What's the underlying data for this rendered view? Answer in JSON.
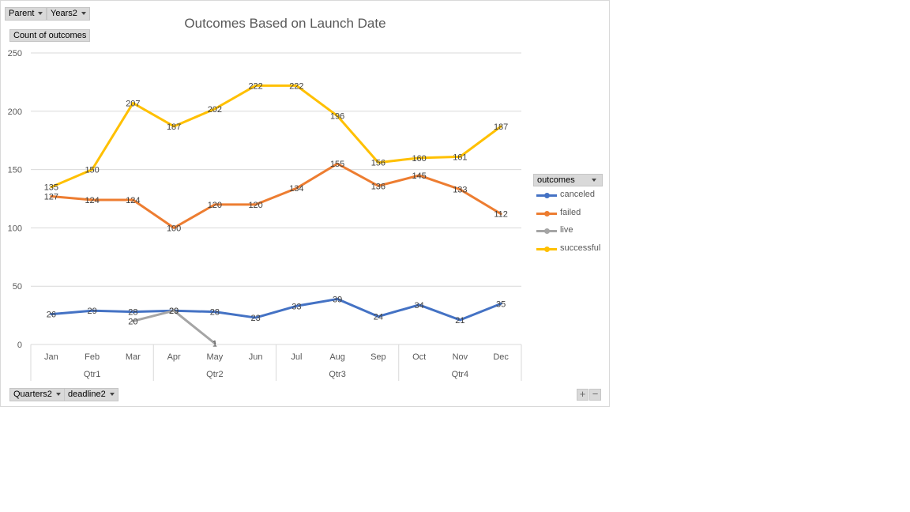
{
  "filters": {
    "top": [
      {
        "label": "Parent"
      },
      {
        "label": "Years2"
      }
    ],
    "value_field": "Count of outcomes",
    "bottom": [
      {
        "label": "Quarters2"
      },
      {
        "label": "deadline2"
      }
    ]
  },
  "legend": {
    "header": "outcomes"
  },
  "zoom": {
    "plus": "+",
    "minus": "−"
  },
  "chart_data": {
    "type": "line",
    "title": "Outcomes Based on Launch Date",
    "xlabel": "",
    "ylabel": "",
    "ylim": [
      0,
      250
    ],
    "yticks": [
      0,
      50,
      100,
      150,
      200,
      250
    ],
    "grid": true,
    "legend_position": "right",
    "categories": [
      "Jan",
      "Feb",
      "Mar",
      "Apr",
      "May",
      "Jun",
      "Jul",
      "Aug",
      "Sep",
      "Oct",
      "Nov",
      "Dec"
    ],
    "groups": [
      {
        "label": "Qtr1",
        "span": 3
      },
      {
        "label": "Qtr2",
        "span": 3
      },
      {
        "label": "Qtr3",
        "span": 3
      },
      {
        "label": "Qtr4",
        "span": 3
      }
    ],
    "series": [
      {
        "name": "canceled",
        "color": "#4472c4",
        "values": [
          26,
          29,
          28,
          29,
          28,
          23,
          33,
          39,
          24,
          34,
          21,
          35
        ]
      },
      {
        "name": "failed",
        "color": "#ed7d31",
        "values": [
          127,
          124,
          124,
          100,
          120,
          120,
          134,
          155,
          136,
          145,
          133,
          112
        ]
      },
      {
        "name": "live",
        "color": "#a5a5a5",
        "values": [
          null,
          null,
          20,
          29,
          1,
          null,
          null,
          null,
          null,
          null,
          null,
          null
        ]
      },
      {
        "name": "successful",
        "color": "#ffc000",
        "values": [
          135,
          150,
          207,
          187,
          202,
          222,
          222,
          196,
          156,
          160,
          161,
          187
        ]
      }
    ]
  }
}
